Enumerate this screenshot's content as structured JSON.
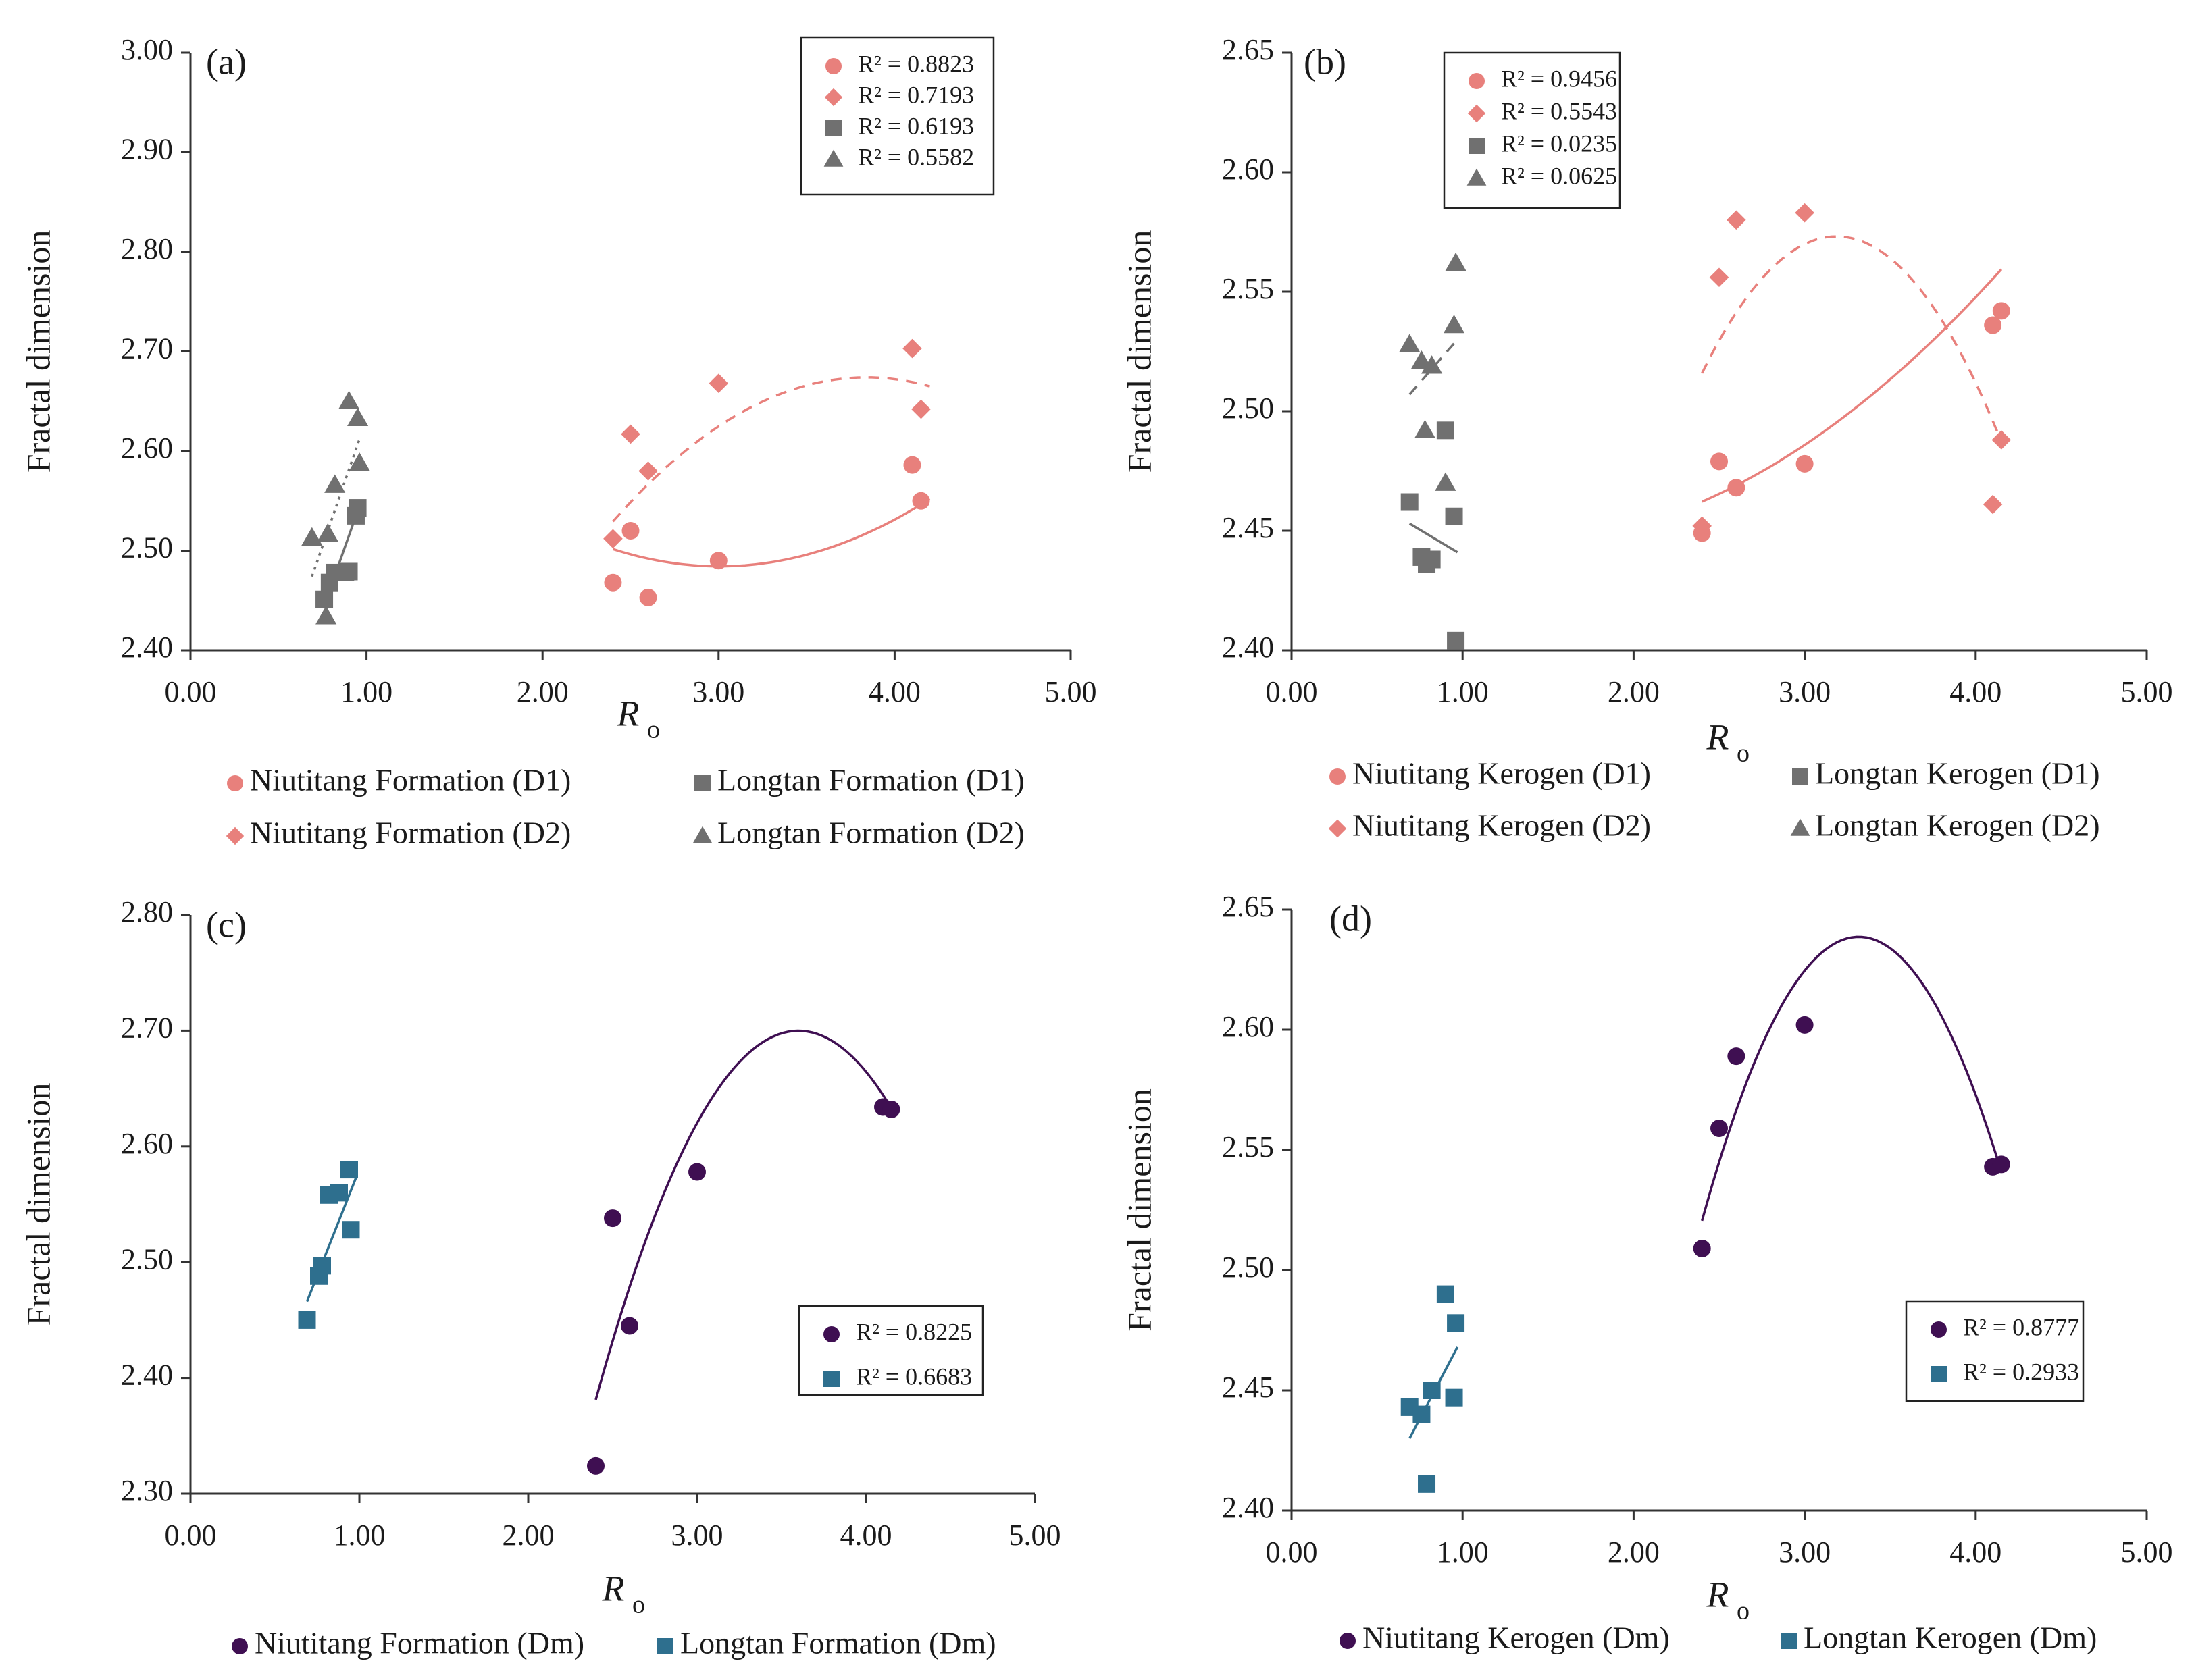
{
  "chart_data": [
    {
      "type": "scatter",
      "panel": "(a)",
      "xlabel": "R",
      "xlabel_sub": "o",
      "ylabel": "Fractal dimension",
      "xlim": [
        0,
        5
      ],
      "ylim": [
        2.4,
        3.0
      ],
      "xticks": [
        "0.00",
        "1.00",
        "2.00",
        "3.00",
        "4.00",
        "5.00"
      ],
      "yticks": [
        "2.40",
        "2.50",
        "2.60",
        "2.70",
        "2.80",
        "2.90",
        "3.00"
      ],
      "r2_legend": [
        {
          "marker": "circle",
          "color": "#E8807C",
          "text": "R² = 0.8823"
        },
        {
          "marker": "diamond",
          "color": "#E8807C",
          "text": "R² = 0.7193"
        },
        {
          "marker": "square",
          "color": "#707070",
          "text": "R² = 0.6193"
        },
        {
          "marker": "triangle",
          "color": "#707070",
          "text": "R² = 0.5582"
        }
      ],
      "bottom_legend": [
        {
          "marker": "circle",
          "color": "#E8807C",
          "label": "Niutitang Formation (D1)"
        },
        {
          "marker": "square",
          "color": "#707070",
          "label": "Longtan Formation (D1)"
        },
        {
          "marker": "diamond",
          "color": "#E8807C",
          "label": "Niutitang Formation (D2)"
        },
        {
          "marker": "triangle",
          "color": "#707070",
          "label": "Longtan Formation (D2)"
        }
      ],
      "series": [
        {
          "name": "Niutitang Formation (D1)",
          "marker": "circle",
          "color": "#E8807C",
          "x": [
            2.4,
            2.5,
            2.6,
            3.0,
            4.1,
            4.15
          ],
          "y": [
            2.468,
            2.52,
            2.453,
            2.49,
            2.586,
            2.55
          ],
          "trend": {
            "type": "poly2",
            "style": "solid",
            "x": [
              2.4,
              4.2
            ],
            "coef": [
              0.0473,
              -0.2842,
              2.9112
            ]
          }
        },
        {
          "name": "Niutitang Formation (D2)",
          "marker": "diamond",
          "color": "#E8807C",
          "x": [
            2.4,
            2.5,
            2.6,
            3.0,
            4.1,
            4.15
          ],
          "y": [
            2.512,
            2.617,
            2.58,
            2.668,
            2.703,
            2.642
          ],
          "trend": {
            "type": "poly2",
            "style": "dashed",
            "x": [
              2.4,
              4.2
            ],
            "coef": [
              -0.0698,
              0.536,
              1.645
            ]
          }
        },
        {
          "name": "Longtan Formation (D1)",
          "marker": "square",
          "color": "#707070",
          "x": [
            0.76,
            0.79,
            0.82,
            0.88,
            0.9,
            0.94,
            0.95
          ],
          "y": [
            2.451,
            2.468,
            2.478,
            2.478,
            2.479,
            2.535,
            2.543
          ],
          "trend": {
            "type": "linear",
            "style": "solid",
            "x": [
              0.76,
              0.95
            ],
            "y": [
              2.445,
              2.54
            ]
          }
        },
        {
          "name": "Longtan Formation (D2)",
          "marker": "triangle",
          "color": "#707070",
          "x": [
            0.69,
            0.77,
            0.78,
            0.82,
            0.9,
            0.95,
            0.96
          ],
          "y": [
            2.513,
            2.434,
            2.517,
            2.566,
            2.65,
            2.633,
            2.588
          ],
          "trend": {
            "type": "linear",
            "style": "dotted",
            "x": [
              0.69,
              0.96
            ],
            "y": [
              2.474,
              2.612
            ]
          }
        }
      ]
    },
    {
      "type": "scatter",
      "panel": "(b)",
      "xlabel": "R",
      "xlabel_sub": "o",
      "ylabel": "Fractal dimension",
      "xlim": [
        0,
        5
      ],
      "ylim": [
        2.4,
        2.65
      ],
      "xticks": [
        "0.00",
        "1.00",
        "2.00",
        "3.00",
        "4.00",
        "5.00"
      ],
      "yticks": [
        "2.40",
        "2.45",
        "2.50",
        "2.55",
        "2.60",
        "2.65"
      ],
      "r2_legend": [
        {
          "marker": "circle",
          "color": "#E8807C",
          "text": "R² = 0.9456"
        },
        {
          "marker": "diamond",
          "color": "#E8807C",
          "text": "R² = 0.5543"
        },
        {
          "marker": "square",
          "color": "#707070",
          "text": "R² = 0.0235"
        },
        {
          "marker": "triangle",
          "color": "#707070",
          "text": "R² = 0.0625"
        }
      ],
      "bottom_legend": [
        {
          "marker": "circle",
          "color": "#E8807C",
          "label": "Niutitang Kerogen (D1)"
        },
        {
          "marker": "square",
          "color": "#707070",
          "label": "Longtan Kerogen (D1)"
        },
        {
          "marker": "diamond",
          "color": "#E8807C",
          "label": "Niutitang Kerogen (D2)"
        },
        {
          "marker": "triangle",
          "color": "#707070",
          "label": "Longtan Kerogen (D2)"
        }
      ],
      "series": [
        {
          "name": "Niutitang Kerogen (D1)",
          "marker": "circle",
          "color": "#E8807C",
          "x": [
            2.4,
            2.5,
            2.6,
            3.0,
            4.1,
            4.15
          ],
          "y": [
            2.449,
            2.479,
            2.468,
            2.478,
            2.536,
            2.542
          ],
          "trend": {
            "type": "poly2",
            "style": "solid",
            "x": [
              2.4,
              4.15
            ],
            "coef": [
              0.0139,
              -0.0355,
              2.4673
            ]
          }
        },
        {
          "name": "Niutitang Kerogen (D2)",
          "marker": "diamond",
          "color": "#E8807C",
          "x": [
            2.4,
            2.5,
            2.6,
            3.0,
            4.1,
            4.15
          ],
          "y": [
            2.452,
            2.556,
            2.58,
            2.583,
            2.461,
            2.488
          ],
          "trend": {
            "type": "poly2",
            "style": "dashed",
            "x": [
              2.4,
              4.15
            ],
            "coef": [
              -0.0925,
              0.5895,
              1.6339
            ]
          }
        },
        {
          "name": "Longtan Kerogen (D1)",
          "marker": "square",
          "color": "#707070",
          "x": [
            0.69,
            0.76,
            0.79,
            0.82,
            0.9,
            0.95,
            0.96
          ],
          "y": [
            2.462,
            2.439,
            2.436,
            2.438,
            2.492,
            2.456,
            2.404
          ],
          "trend": {
            "type": "linear",
            "style": "solid",
            "x": [
              0.69,
              0.97
            ],
            "y": [
              2.453,
              2.441
            ]
          }
        },
        {
          "name": "Longtan Kerogen (D2)",
          "marker": "triangle",
          "color": "#707070",
          "x": [
            0.69,
            0.76,
            0.78,
            0.82,
            0.9,
            0.95,
            0.96
          ],
          "y": [
            2.528,
            2.521,
            2.492,
            2.519,
            2.47,
            2.536,
            2.562
          ],
          "trend": {
            "type": "linear",
            "style": "dashed",
            "x": [
              0.69,
              0.97
            ],
            "y": [
              2.507,
              2.53
            ]
          }
        }
      ]
    },
    {
      "type": "scatter",
      "panel": "(c)",
      "xlabel": "R",
      "xlabel_sub": "o",
      "ylabel": "Fractal dimension",
      "xlim": [
        0,
        5
      ],
      "ylim": [
        2.3,
        2.8
      ],
      "xticks": [
        "0.00",
        "1.00",
        "2.00",
        "3.00",
        "4.00",
        "5.00"
      ],
      "yticks": [
        "2.30",
        "2.40",
        "2.50",
        "2.60",
        "2.70",
        "2.80"
      ],
      "r2_legend": [
        {
          "marker": "circle",
          "color": "#3F0F52",
          "text": "R² = 0.8225"
        },
        {
          "marker": "square",
          "color": "#2E6F8E",
          "text": "R² = 0.6683"
        }
      ],
      "bottom_legend": [
        {
          "marker": "circle",
          "color": "#3F0F52",
          "label": "Niutitang Formation (Dm)"
        },
        {
          "marker": "square",
          "color": "#2E6F8E",
          "label": "Longtan Formation (Dm)"
        }
      ],
      "series": [
        {
          "name": "Niutitang Formation (Dm)",
          "marker": "circle",
          "color": "#3F0F52",
          "x": [
            2.4,
            2.5,
            2.6,
            3.0,
            4.1,
            4.15
          ],
          "y": [
            2.324,
            2.538,
            2.445,
            2.578,
            2.634,
            2.632
          ],
          "trend": {
            "type": "poly2",
            "style": "solid",
            "x": [
              2.4,
              4.15
            ],
            "coef": [
              -0.2213,
              1.5935,
              -0.1686
            ]
          }
        },
        {
          "name": "Longtan Formation (Dm)",
          "marker": "square",
          "color": "#2E6F8E",
          "x": [
            0.69,
            0.76,
            0.78,
            0.82,
            0.88,
            0.94,
            0.95
          ],
          "y": [
            2.45,
            2.488,
            2.497,
            2.558,
            2.56,
            2.58,
            2.528
          ],
          "trend": {
            "type": "linear",
            "style": "solid",
            "x": [
              0.69,
              0.98
            ],
            "y": [
              2.466,
              2.573
            ]
          }
        }
      ]
    },
    {
      "type": "scatter",
      "panel": "(d)",
      "xlabel": "R",
      "xlabel_sub": "o",
      "ylabel": "Fractal dimension",
      "xlim": [
        0,
        5
      ],
      "ylim": [
        2.4,
        2.65
      ],
      "xticks": [
        "0.00",
        "1.00",
        "2.00",
        "3.00",
        "4.00",
        "5.00"
      ],
      "yticks": [
        "2.40",
        "2.45",
        "2.50",
        "2.55",
        "2.60",
        "2.65"
      ],
      "r2_legend": [
        {
          "marker": "circle",
          "color": "#3F0F52",
          "text": "R² = 0.8777"
        },
        {
          "marker": "square",
          "color": "#2E6F8E",
          "text": "R² = 0.2933"
        }
      ],
      "bottom_legend": [
        {
          "marker": "circle",
          "color": "#3F0F52",
          "label": "Niutitang Kerogen (Dm)"
        },
        {
          "marker": "square",
          "color": "#2E6F8E",
          "label": "Longtan Kerogen (Dm)"
        }
      ],
      "series": [
        {
          "name": "Niutitang Kerogen (Dm)",
          "marker": "circle",
          "color": "#3F0F52",
          "x": [
            2.4,
            2.5,
            2.6,
            3.0,
            4.1,
            4.15
          ],
          "y": [
            2.509,
            2.559,
            2.589,
            2.602,
            2.543,
            2.544
          ],
          "trend": {
            "type": "poly2",
            "style": "solid",
            "x": [
              2.4,
              4.15
            ],
            "coef": [
              -0.1407,
              0.9332,
              1.0913
            ]
          }
        },
        {
          "name": "Longtan Kerogen (Dm)",
          "marker": "square",
          "color": "#2E6F8E",
          "x": [
            0.69,
            0.76,
            0.79,
            0.82,
            0.9,
            0.95,
            0.96
          ],
          "y": [
            2.443,
            2.44,
            2.411,
            2.45,
            2.49,
            2.447,
            2.478
          ],
          "trend": {
            "type": "linear",
            "style": "solid",
            "x": [
              0.69,
              0.97
            ],
            "y": [
              2.43,
              2.468
            ]
          }
        }
      ]
    }
  ]
}
